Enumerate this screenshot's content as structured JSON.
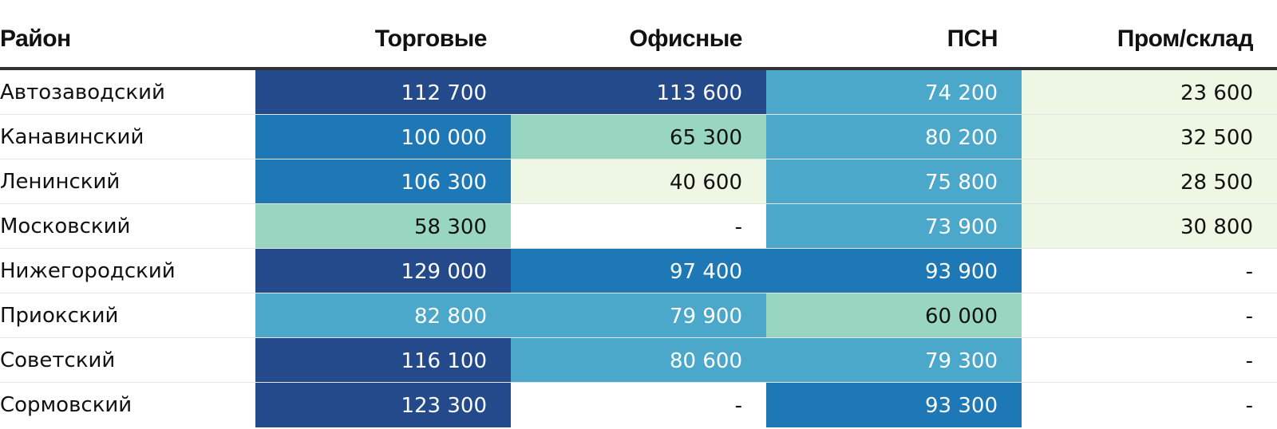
{
  "chart_data": {
    "type": "heatmap",
    "headers": [
      "Район",
      "Торговые",
      "Офисные",
      "ПСН",
      "Пром/склад"
    ],
    "rows": [
      {
        "district": "Автозаводский",
        "values": [
          112700,
          113600,
          74200,
          23600
        ],
        "labels": [
          "112 700",
          "113 600",
          "74 200",
          "23 600"
        ]
      },
      {
        "district": "Канавинский",
        "values": [
          100000,
          65300,
          80200,
          32500
        ],
        "labels": [
          "100 000",
          "65 300",
          "80 200",
          "32 500"
        ]
      },
      {
        "district": "Ленинский",
        "values": [
          106300,
          40600,
          75800,
          28500
        ],
        "labels": [
          "106 300",
          "40 600",
          "75 800",
          "28 500"
        ]
      },
      {
        "district": "Московский",
        "values": [
          58300,
          null,
          73900,
          30800
        ],
        "labels": [
          "58 300",
          "-",
          "73 900",
          "30 800"
        ]
      },
      {
        "district": "Нижегородский",
        "values": [
          129000,
          97400,
          93900,
          null
        ],
        "labels": [
          "129 000",
          "97 400",
          "93 900",
          "-"
        ]
      },
      {
        "district": "Приокский",
        "values": [
          82800,
          79900,
          60000,
          null
        ],
        "labels": [
          "82 800",
          "79 900",
          "60 000",
          "-"
        ]
      },
      {
        "district": "Советский",
        "values": [
          116100,
          80600,
          79300,
          null
        ],
        "labels": [
          "116 100",
          "80 600",
          "79 300",
          "-"
        ]
      },
      {
        "district": "Сормовский",
        "values": [
          123300,
          null,
          93300,
          null
        ],
        "labels": [
          "123 300",
          "-",
          "93 300",
          "-"
        ]
      }
    ],
    "color_scale": {
      "thresholds": [
        50000,
        70000,
        90000,
        110000
      ],
      "colors": [
        "#eef7e4",
        "#98d6c2",
        "#4ba8cb",
        "#1e78b6",
        "#244a8c"
      ],
      "empty_color": "#ffffff",
      "dark_text": "#111111",
      "light_text": "#ffffff"
    }
  }
}
